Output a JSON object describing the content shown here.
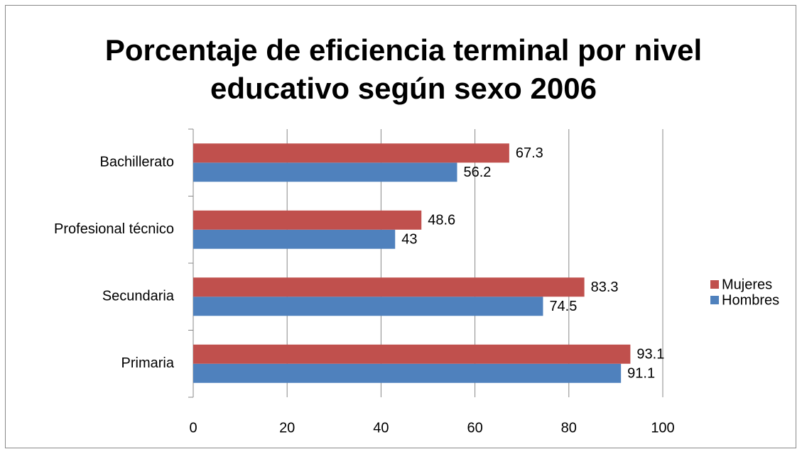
{
  "chart_data": {
    "type": "hbar",
    "title": [
      "Porcentaje de eficiencia terminal por nivel",
      "educativo según sexo 2006"
    ],
    "categories": [
      "Primaria",
      "Secundaria",
      "Profesional técnico",
      "Bachillerato"
    ],
    "series": [
      {
        "name": "Hombres",
        "color": "#4f81bd",
        "values": [
          91.1,
          74.5,
          43,
          56.2
        ]
      },
      {
        "name": "Mujeres",
        "color": "#c0504d",
        "values": [
          93.1,
          83.3,
          48.6,
          67.3
        ]
      }
    ],
    "xlim": [
      0,
      100
    ],
    "xticks": [
      0,
      20,
      40,
      60,
      80,
      100
    ],
    "grid": true,
    "legend": "right"
  }
}
